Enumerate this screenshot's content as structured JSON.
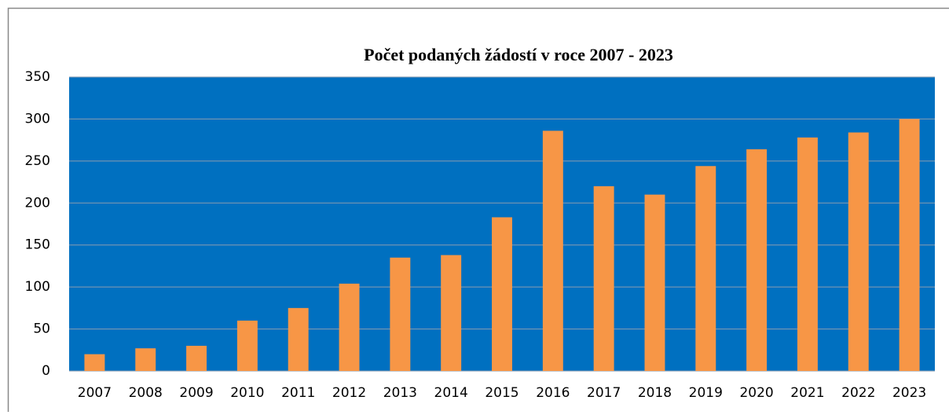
{
  "chart_data": {
    "type": "bar",
    "title": "Počet podaných žádostí v roce 2007 - 2023",
    "categories": [
      "2007",
      "2008",
      "2009",
      "2010",
      "2011",
      "2012",
      "2013",
      "2014",
      "2015",
      "2016",
      "2017",
      "2018",
      "2019",
      "2020",
      "2021",
      "2022",
      "2023"
    ],
    "values": [
      20,
      27,
      30,
      60,
      75,
      104,
      135,
      138,
      183,
      286,
      220,
      210,
      244,
      264,
      278,
      284,
      300
    ],
    "color": "#f79646",
    "background": "#0070c0",
    "ylim": [
      0,
      350
    ],
    "yticks": [
      0,
      50,
      100,
      150,
      200,
      250,
      300,
      350
    ],
    "grid": true
  }
}
